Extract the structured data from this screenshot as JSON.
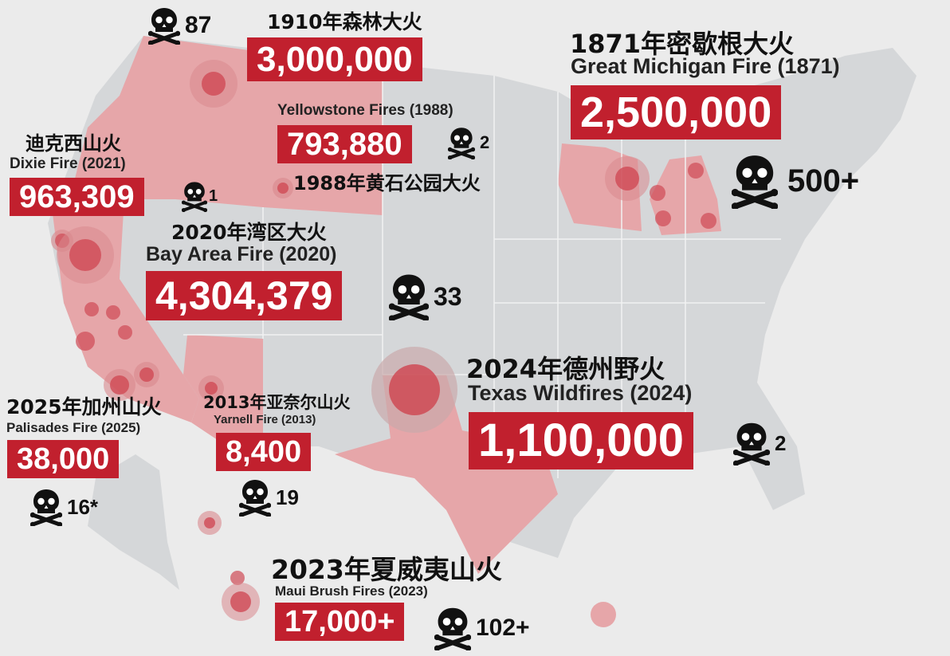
{
  "colors": {
    "label_bg": "#c1202e",
    "affected_state": "#e6a6a9",
    "fire_circle": "#cf4a55",
    "land": "#d5d7d9",
    "background": "#ebebeb"
  },
  "icons": {
    "deaths": "skull-crossbones-icon"
  },
  "fires": [
    {
      "id": "1910",
      "zh": "1910年森林大火",
      "en": "",
      "acres": "3,000,000",
      "deaths": "87"
    },
    {
      "id": "michigan",
      "zh": "1871年密歇根大火",
      "en": "Great Michigan Fire (1871)",
      "acres": "2,500,000",
      "deaths": "500+"
    },
    {
      "id": "yellowstone",
      "zh": "1988年黄石公园大火",
      "en": "Yellowstone Fires (1988)",
      "acres": "793,880",
      "deaths": "2"
    },
    {
      "id": "dixie",
      "zh": "迪克西山火",
      "en": "Dixie Fire (2021)",
      "acres": "963,309",
      "deaths": "1"
    },
    {
      "id": "bayarea",
      "zh": "2020年湾区大火",
      "en": "Bay Area Fire (2020)",
      "acres": "4,304,379",
      "deaths": "33"
    },
    {
      "id": "texas",
      "zh": "2024年德州野火",
      "en": "Texas Wildfires (2024)",
      "acres": "1,100,000",
      "deaths": "2"
    },
    {
      "id": "palisades",
      "zh": "2025年加州山火",
      "en": "Palisades Fire (2025)",
      "acres": "38,000",
      "deaths": "16*"
    },
    {
      "id": "yarnell",
      "zh": "2013年亚奈尔山火",
      "en": "Yarnell Fire (2013)",
      "acres": "8,400",
      "deaths": "19"
    },
    {
      "id": "maui",
      "zh": "2023年夏威夷山火",
      "en": "Maui Brush Fires (2023)",
      "acres": "17,000+",
      "deaths": "102+"
    }
  ]
}
